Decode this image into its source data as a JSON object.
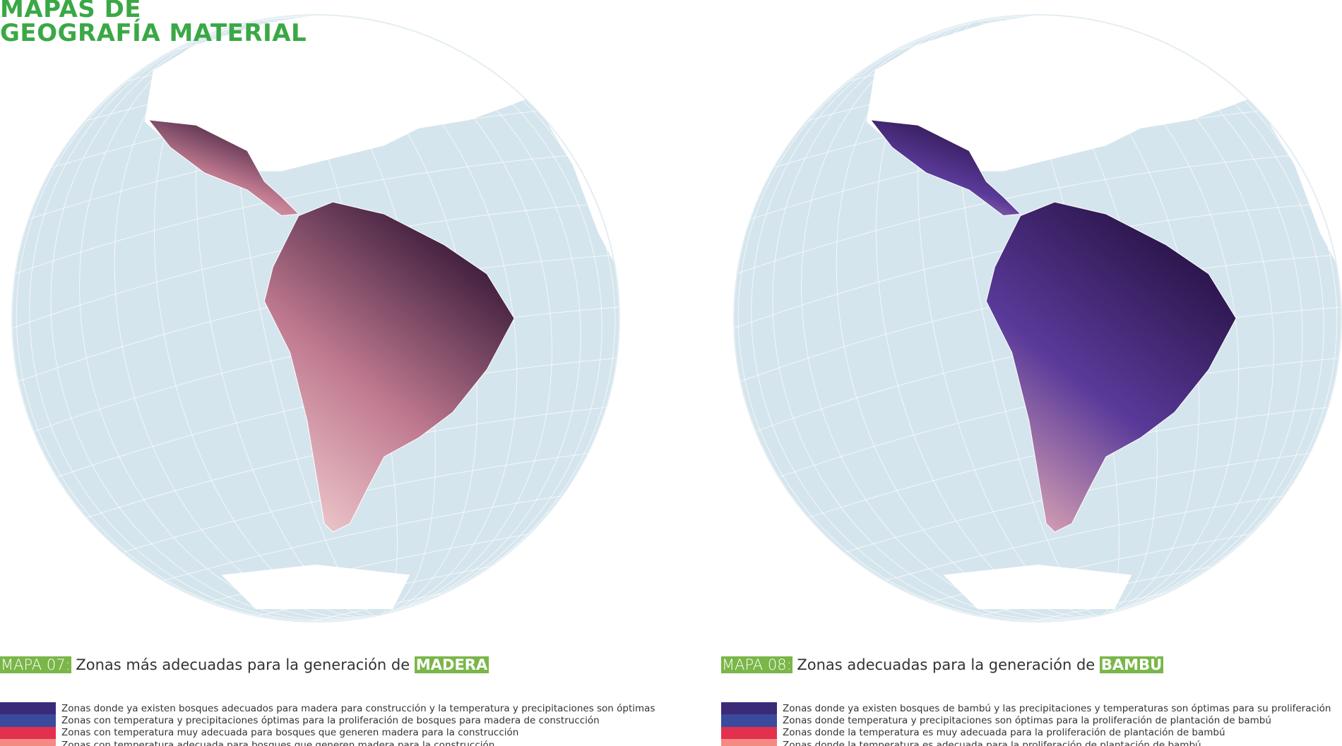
{
  "header": {
    "title_line1": "MAPAS DE",
    "title_line2": "GEOGRAFÍA MATERIAL"
  },
  "maps": [
    {
      "label": "MAPA 07:",
      "caption": "Zonas más adecuadas para la generación de",
      "highlight": "MADERA",
      "gradient": [
        "#f7d8d8",
        "#c07a90",
        "#3a1b3a"
      ],
      "legend": [
        {
          "color": "#3b2a78",
          "text": "Zonas donde ya existen bosques adecuados para madera para construcción y la temperatura y precipitaciones son óptimas"
        },
        {
          "color": "#3a4a9c",
          "text": "Zonas con temperatura y precipitaciones óptimas para la proliferación de bosques para madera de construcción"
        },
        {
          "color": "#e2304e",
          "text": "Zonas con temperatura muy adecuada para bosques que generen madera para la construcción"
        },
        {
          "color": "#f58a82",
          "text": "Zonas con temperatura adecuada para bosques que generen madera para la construcción"
        }
      ]
    },
    {
      "label": "MAPA 08:",
      "caption": "Zonas adecuadas para la generación de",
      "highlight": "BAMBÚ",
      "gradient": [
        "#f3b8b8",
        "#5a3a9a",
        "#2a1448"
      ],
      "legend": [
        {
          "color": "#3b2a78",
          "text": "Zonas donde ya existen bosques de bambú y las precipitaciones y temperaturas son óptimas para su proliferación"
        },
        {
          "color": "#3a4a9c",
          "text": "Zonas donde temperatura y precipitaciones son óptimas para la proliferación de plantación de bambú"
        },
        {
          "color": "#e2304e",
          "text": "Zonas donde la temperatura es muy adecuada para la proliferación de plantación de bambú"
        },
        {
          "color": "#f58a82",
          "text": "Zonas donde la temperatura es adecuada para la proliferación de plantación de bambú"
        }
      ]
    }
  ]
}
